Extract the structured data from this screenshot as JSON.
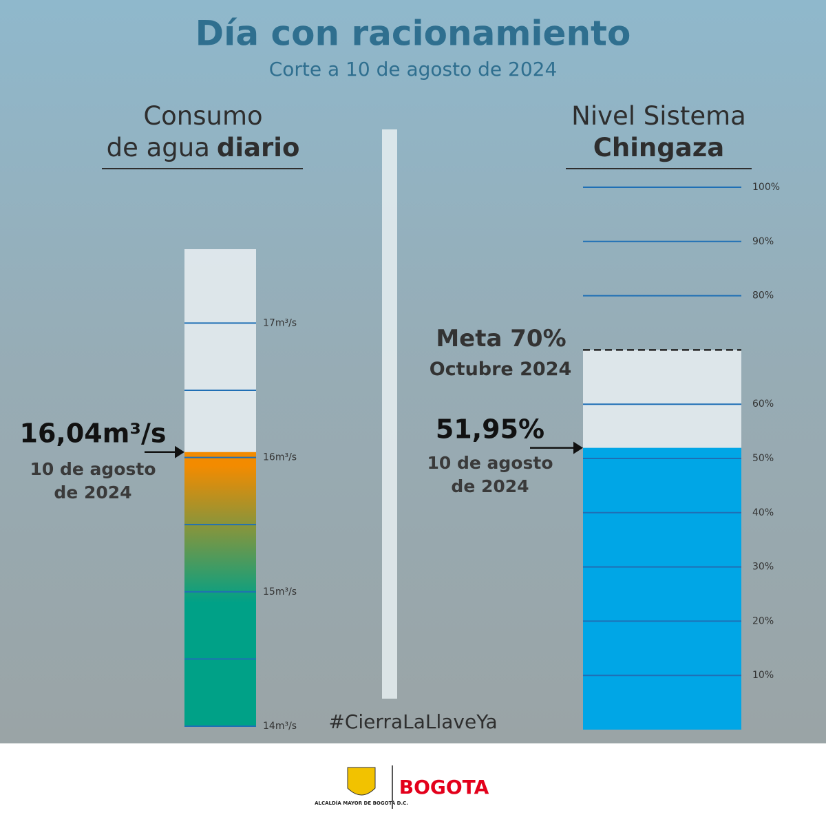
{
  "title": "Día con racionamiento",
  "subtitle": "Corte a 10 de agosto de 2024",
  "hashtag": "#CierraLaLlaveYa",
  "footer": {
    "logo_text": "ALCALDÍA MAYOR DE BOGOTÁ D.C.",
    "brand": "BOGOTA"
  },
  "chart_data": [
    {
      "type": "bar",
      "title": [
        "Consumo",
        "de agua",
        "diario"
      ],
      "values": [
        16.04
      ],
      "value_labels": [
        "16,04m³/s"
      ],
      "annotation": "10 de agosto de 2024",
      "ylim": [
        14,
        17.55
      ],
      "yticks": [
        {
          "value": 14,
          "label": "14m³/s"
        },
        {
          "value": 15,
          "label": "15m³/s"
        },
        {
          "value": 16,
          "label": "16m³/s"
        },
        {
          "value": 17,
          "label": "17m³/s"
        }
      ],
      "minor_yticks": [
        14.5,
        15.5,
        16.5
      ],
      "colors": [
        "#00a187",
        "#f38b00"
      ]
    },
    {
      "type": "bar",
      "title": [
        "Nivel Sistema",
        "Chingaza"
      ],
      "values": [
        51.95
      ],
      "value_labels": [
        "51,95%"
      ],
      "annotation": "10 de agosto de 2024",
      "ylim": [
        0,
        100
      ],
      "yticks": [
        {
          "value": 10,
          "label": "10%"
        },
        {
          "value": 20,
          "label": "20%"
        },
        {
          "value": 30,
          "label": "30%"
        },
        {
          "value": 40,
          "label": "40%"
        },
        {
          "value": 50,
          "label": "50%"
        },
        {
          "value": 60,
          "label": "60%"
        },
        {
          "value": 80,
          "label": "80%"
        },
        {
          "value": 90,
          "label": "90%"
        },
        {
          "value": 100,
          "label": "100%"
        }
      ],
      "target": {
        "value": 70,
        "label": "Meta 70%",
        "sublabel": "Octubre 2024"
      },
      "color": "#00a6e6"
    }
  ]
}
